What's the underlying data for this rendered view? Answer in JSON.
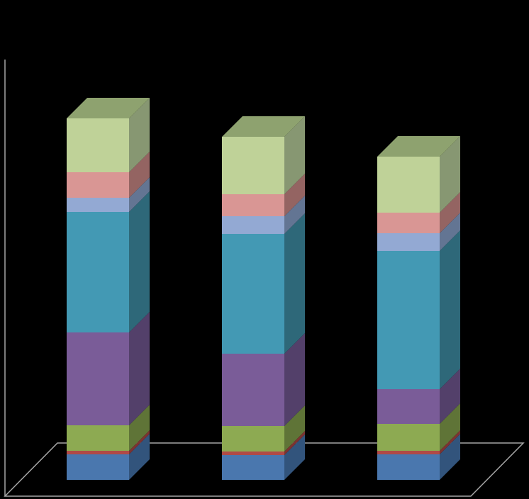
{
  "chart_data": {
    "type": "bar",
    "stacked": true,
    "three_d": true,
    "title": "",
    "xlabel": "",
    "ylabel": "",
    "legend": "none",
    "grid": false,
    "background": "#000000",
    "axis_color": "#a6a6a6",
    "categories": [
      "",
      "",
      ""
    ],
    "series": [
      {
        "front": "#4a77ae",
        "side": "#32547c",
        "top": "#5a87be",
        "values": [
          36,
          35,
          36
        ]
      },
      {
        "front": "#b04a46",
        "side": "#7c3331",
        "top": "#c05a56",
        "values": [
          5,
          5,
          5
        ]
      },
      {
        "front": "#8daa52",
        "side": "#5f7437",
        "top": "#9dba62",
        "values": [
          36,
          36,
          38
        ]
      },
      {
        "front": "#7a5c98",
        "side": "#53406a",
        "top": "#8a6ca8",
        "values": [
          131,
          102,
          49
        ]
      },
      {
        "front": "#4399b4",
        "side": "#2e6879",
        "top": "#53a9c4",
        "values": [
          170,
          169,
          195
        ]
      },
      {
        "front": "#93a9d3",
        "side": "#637593",
        "top": "#a3b9e3",
        "values": [
          20,
          25,
          25
        ]
      },
      {
        "front": "#d99694",
        "side": "#946462",
        "top": "#e9a6a4",
        "values": [
          36,
          31,
          29
        ]
      },
      {
        "front": "#bfd298",
        "side": "#879772",
        "top": "#8ea26f",
        "values": [
          76,
          81,
          79
        ]
      }
    ],
    "ylim": [
      0,
      560
    ]
  }
}
